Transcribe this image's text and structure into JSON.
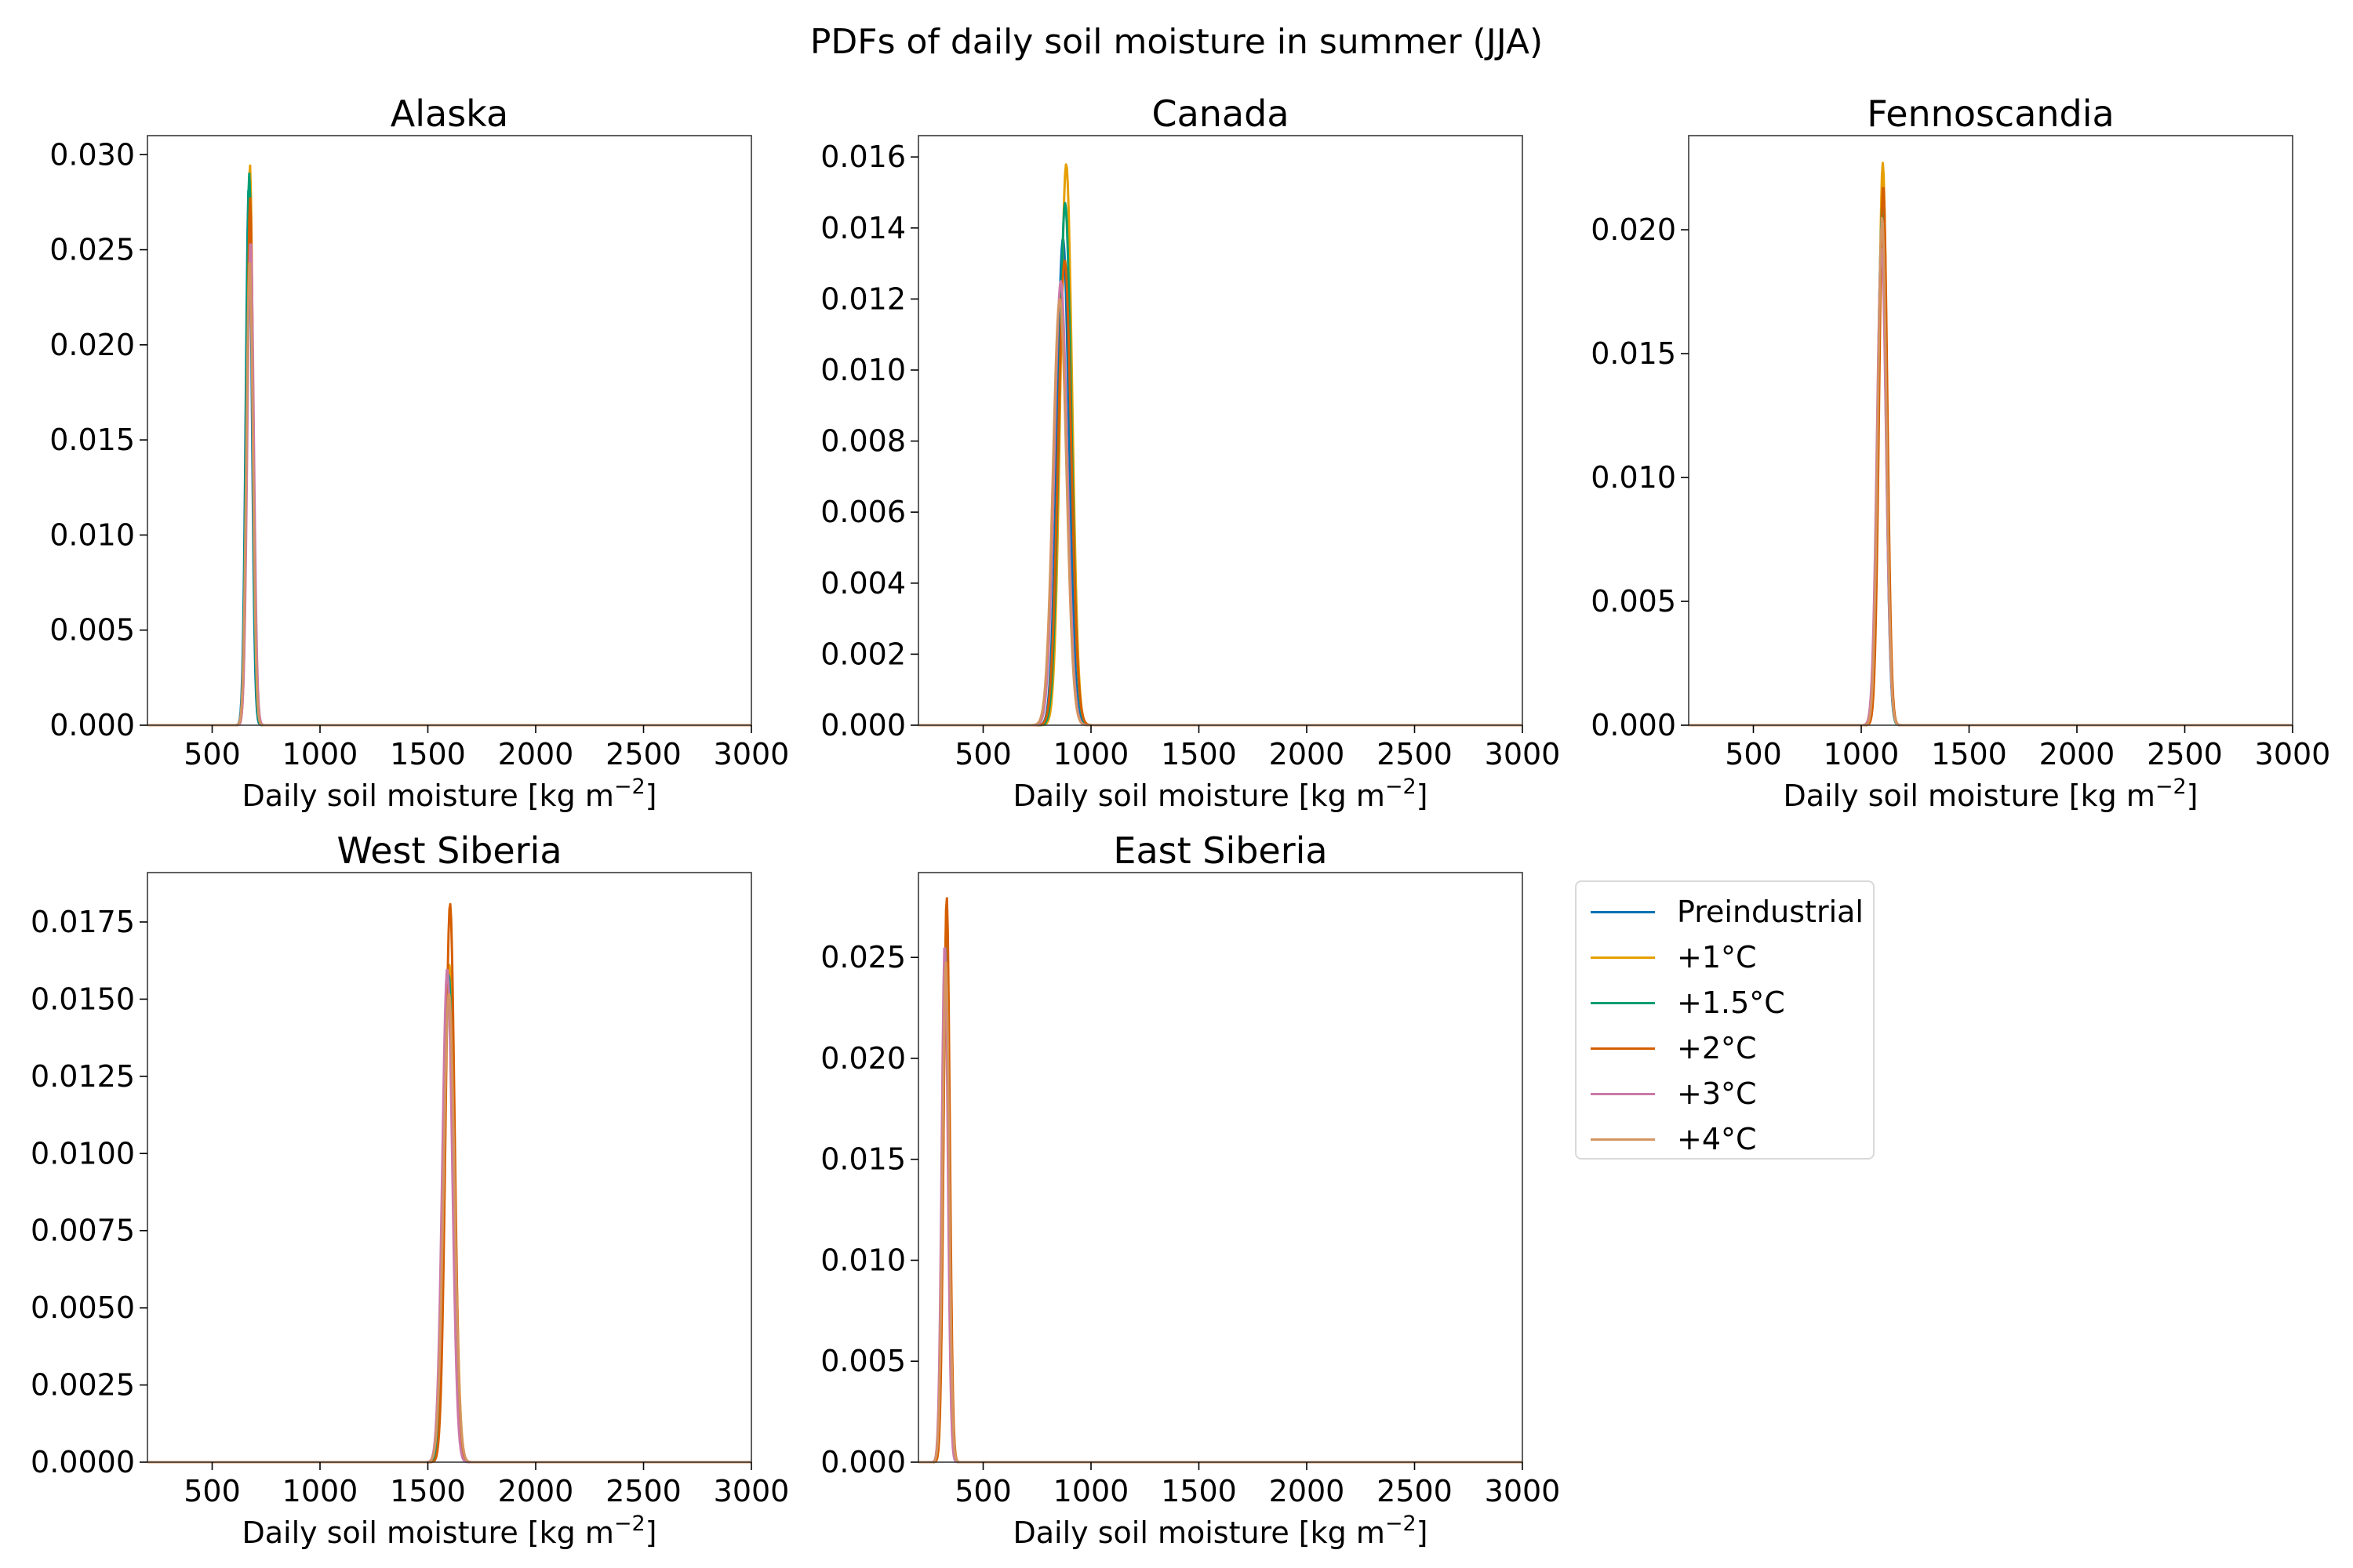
{
  "figure": {
    "title": "PDFs of daily soil moisture in summer (JJA)"
  },
  "legend": {
    "placement": "right of bottom row",
    "entries": [
      "Preindustrial",
      "+1°C",
      "+1.5°C",
      "+2°C",
      "+3°C",
      "+4°C"
    ],
    "colors": [
      "#0072b2",
      "#e69f00",
      "#009e73",
      "#d55e00",
      "#cc79a7",
      "#d49562"
    ]
  },
  "chart_data": [
    {
      "type": "line",
      "title": "Alaska",
      "xlabel": "Daily soil moisture [kg m",
      "xlabel_sup": "−2",
      "xlabel_end": "]",
      "ylabel": "",
      "xlim": [
        200,
        3000
      ],
      "ylim": [
        0,
        0.031
      ],
      "xticks": [
        500,
        1000,
        1500,
        2000,
        2500,
        3000
      ],
      "yticks": [
        "0.000",
        "0.005",
        "0.010",
        "0.015",
        "0.020",
        "0.025",
        "0.030"
      ],
      "yticks_values": [
        0,
        0.005,
        0.01,
        0.015,
        0.02,
        0.025,
        0.03
      ],
      "grid": false,
      "series": [
        {
          "name": "Preindustrial",
          "color": "#0072b2",
          "peak_x": 670,
          "peak": 0.0284,
          "width": 14
        },
        {
          "name": "+1°C",
          "color": "#e69f00",
          "peak_x": 675,
          "peak": 0.0295,
          "width": 14
        },
        {
          "name": "+1.5°C",
          "color": "#009e73",
          "peak_x": 672,
          "peak": 0.029,
          "width": 14
        },
        {
          "name": "+2°C",
          "color": "#d55e00",
          "peak_x": 676,
          "peak": 0.0277,
          "width": 14
        },
        {
          "name": "+3°C",
          "color": "#cc79a7",
          "peak_x": 678,
          "peak": 0.0255,
          "width": 15
        },
        {
          "name": "+4°C",
          "color": "#d49562",
          "peak_x": 674,
          "peak": 0.0245,
          "width": 15
        }
      ]
    },
    {
      "type": "line",
      "title": "Canada",
      "xlabel": "Daily soil moisture [kg m",
      "xlabel_sup": "−2",
      "xlabel_end": "]",
      "ylabel": "",
      "xlim": [
        200,
        3000
      ],
      "ylim": [
        0,
        0.0166
      ],
      "xticks": [
        500,
        1000,
        1500,
        2000,
        2500,
        3000
      ],
      "yticks": [
        "0.000",
        "0.002",
        "0.004",
        "0.006",
        "0.008",
        "0.010",
        "0.012",
        "0.014",
        "0.016"
      ],
      "yticks_values": [
        0,
        0.002,
        0.004,
        0.006,
        0.008,
        0.01,
        0.012,
        0.014,
        0.016
      ],
      "grid": false,
      "series": [
        {
          "name": "Preindustrial",
          "color": "#0072b2",
          "peak_x": 870,
          "peak": 0.0137,
          "width": 28
        },
        {
          "name": "+1°C",
          "color": "#e69f00",
          "peak_x": 885,
          "peak": 0.0158,
          "width": 27
        },
        {
          "name": "+1.5°C",
          "color": "#009e73",
          "peak_x": 880,
          "peak": 0.0147,
          "width": 28
        },
        {
          "name": "+2°C",
          "color": "#d55e00",
          "peak_x": 878,
          "peak": 0.0131,
          "width": 30
        },
        {
          "name": "+3°C",
          "color": "#cc79a7",
          "peak_x": 860,
          "peak": 0.0125,
          "width": 30
        },
        {
          "name": "+4°C",
          "color": "#d49562",
          "peak_x": 855,
          "peak": 0.012,
          "width": 31
        }
      ]
    },
    {
      "type": "line",
      "title": "Fennoscandia",
      "xlabel": "Daily soil moisture [kg m",
      "xlabel_sup": "−2",
      "xlabel_end": "]",
      "ylabel": "",
      "xlim": [
        200,
        3000
      ],
      "ylim": [
        0,
        0.0238
      ],
      "xticks": [
        500,
        1000,
        1500,
        2000,
        2500,
        3000
      ],
      "yticks": [
        "0.000",
        "0.005",
        "0.010",
        "0.015",
        "0.020"
      ],
      "yticks_values": [
        0,
        0.005,
        0.01,
        0.015,
        0.02
      ],
      "grid": false,
      "series": [
        {
          "name": "Preindustrial",
          "color": "#0072b2",
          "peak_x": 1095,
          "peak": 0.02,
          "width": 20
        },
        {
          "name": "+1°C",
          "color": "#e69f00",
          "peak_x": 1100,
          "peak": 0.0227,
          "width": 19
        },
        {
          "name": "+1.5°C",
          "color": "#009e73",
          "peak_x": 1098,
          "peak": 0.021,
          "width": 19
        },
        {
          "name": "+2°C",
          "color": "#d55e00",
          "peak_x": 1102,
          "peak": 0.0218,
          "width": 19
        },
        {
          "name": "+3°C",
          "color": "#cc79a7",
          "peak_x": 1094,
          "peak": 0.0193,
          "width": 21
        },
        {
          "name": "+4°C",
          "color": "#d49562",
          "peak_x": 1097,
          "peak": 0.0205,
          "width": 20
        }
      ]
    },
    {
      "type": "line",
      "title": "West Siberia",
      "xlabel": "Daily soil moisture [kg m",
      "xlabel_sup": "−2",
      "xlabel_end": "]",
      "ylabel": "",
      "xlim": [
        200,
        3000
      ],
      "ylim": [
        0,
        0.0191
      ],
      "xticks": [
        500,
        1000,
        1500,
        2000,
        2500,
        3000
      ],
      "yticks": [
        "0.0000",
        "0.0025",
        "0.0050",
        "0.0075",
        "0.0100",
        "0.0125",
        "0.0150",
        "0.0175"
      ],
      "yticks_values": [
        0,
        0.0025,
        0.005,
        0.0075,
        0.01,
        0.0125,
        0.015,
        0.0175
      ],
      "grid": false,
      "series": [
        {
          "name": "Preindustrial",
          "color": "#0072b2",
          "peak_x": 1595,
          "peak": 0.0155,
          "width": 22
        },
        {
          "name": "+1°C",
          "color": "#e69f00",
          "peak_x": 1600,
          "peak": 0.0161,
          "width": 24
        },
        {
          "name": "+1.5°C",
          "color": "#009e73",
          "peak_x": 1597,
          "peak": 0.0158,
          "width": 23
        },
        {
          "name": "+2°C",
          "color": "#d55e00",
          "peak_x": 1603,
          "peak": 0.0181,
          "width": 21
        },
        {
          "name": "+3°C",
          "color": "#cc79a7",
          "peak_x": 1590,
          "peak": 0.016,
          "width": 23
        },
        {
          "name": "+4°C",
          "color": "#d49562",
          "peak_x": 1598,
          "peak": 0.0152,
          "width": 25
        }
      ]
    },
    {
      "type": "line",
      "title": "East Siberia",
      "xlabel": "Daily soil moisture [kg m",
      "xlabel_sup": "−2",
      "xlabel_end": "]",
      "ylabel": "",
      "xlim": [
        200,
        3000
      ],
      "ylim": [
        0,
        0.0292
      ],
      "xticks": [
        500,
        1000,
        1500,
        2000,
        2500,
        3000
      ],
      "yticks": [
        "0.000",
        "0.005",
        "0.010",
        "0.015",
        "0.020",
        "0.025"
      ],
      "yticks_values": [
        0,
        0.005,
        0.01,
        0.015,
        0.02,
        0.025
      ],
      "grid": false,
      "series": [
        {
          "name": "Preindustrial",
          "color": "#0072b2",
          "peak_x": 325,
          "peak": 0.025,
          "width": 14
        },
        {
          "name": "+1°C",
          "color": "#e69f00",
          "peak_x": 330,
          "peak": 0.027,
          "width": 14
        },
        {
          "name": "+1.5°C",
          "color": "#009e73",
          "peak_x": 328,
          "peak": 0.0262,
          "width": 14
        },
        {
          "name": "+2°C",
          "color": "#d55e00",
          "peak_x": 331,
          "peak": 0.028,
          "width": 14
        },
        {
          "name": "+3°C",
          "color": "#cc79a7",
          "peak_x": 322,
          "peak": 0.0257,
          "width": 14
        },
        {
          "name": "+4°C",
          "color": "#d49562",
          "peak_x": 327,
          "peak": 0.0248,
          "width": 15
        }
      ]
    }
  ]
}
